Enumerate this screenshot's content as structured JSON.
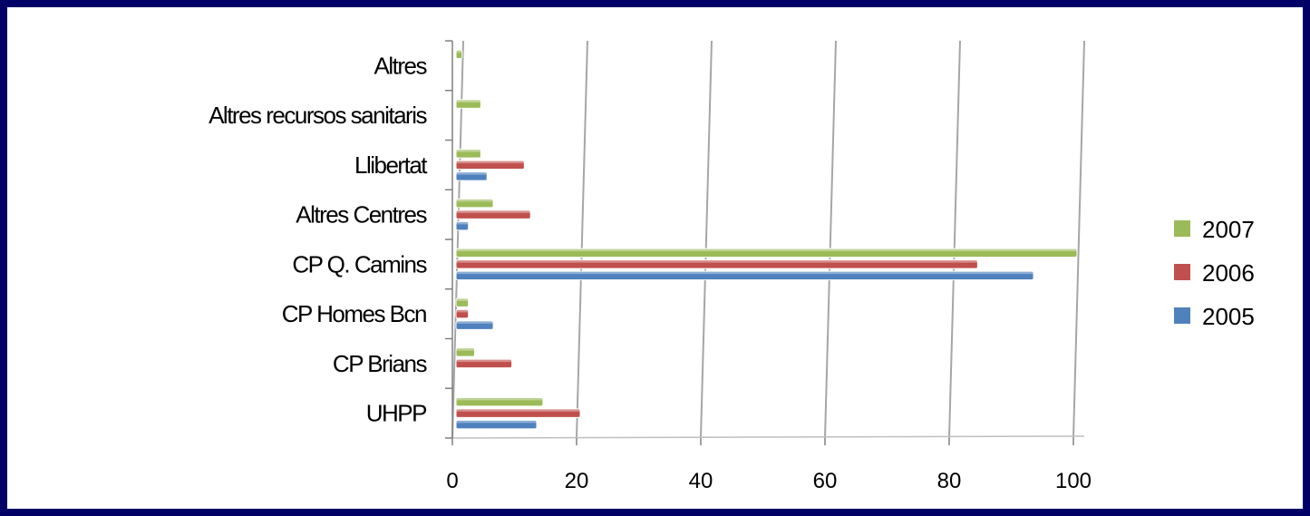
{
  "chart_data": {
    "type": "bar",
    "orientation": "horizontal",
    "title": "",
    "xlabel": "",
    "ylabel": "",
    "categories": [
      "UHPP",
      "CP Brians",
      "CP Homes Bcn",
      "CP Q. Camins",
      "Altres Centres",
      "Llibertat",
      "Altres recursos sanitaris",
      "Altres"
    ],
    "series": [
      {
        "name": "2005",
        "color": "#4f81bd",
        "values": [
          13,
          0,
          6,
          93,
          2,
          5,
          0,
          0
        ]
      },
      {
        "name": "2006",
        "color": "#c0504d",
        "values": [
          20,
          9,
          2,
          84,
          12,
          11,
          0,
          0
        ]
      },
      {
        "name": "2007",
        "color": "#9bbb59",
        "values": [
          14,
          3,
          2,
          100,
          6,
          4,
          4,
          1
        ]
      }
    ],
    "xlim": [
      0,
      100
    ],
    "xticks": [
      "0",
      "20",
      "40",
      "60",
      "80",
      "100"
    ],
    "grid": true,
    "legend_position": "right",
    "legend_order": [
      "2007",
      "2006",
      "2005"
    ]
  }
}
